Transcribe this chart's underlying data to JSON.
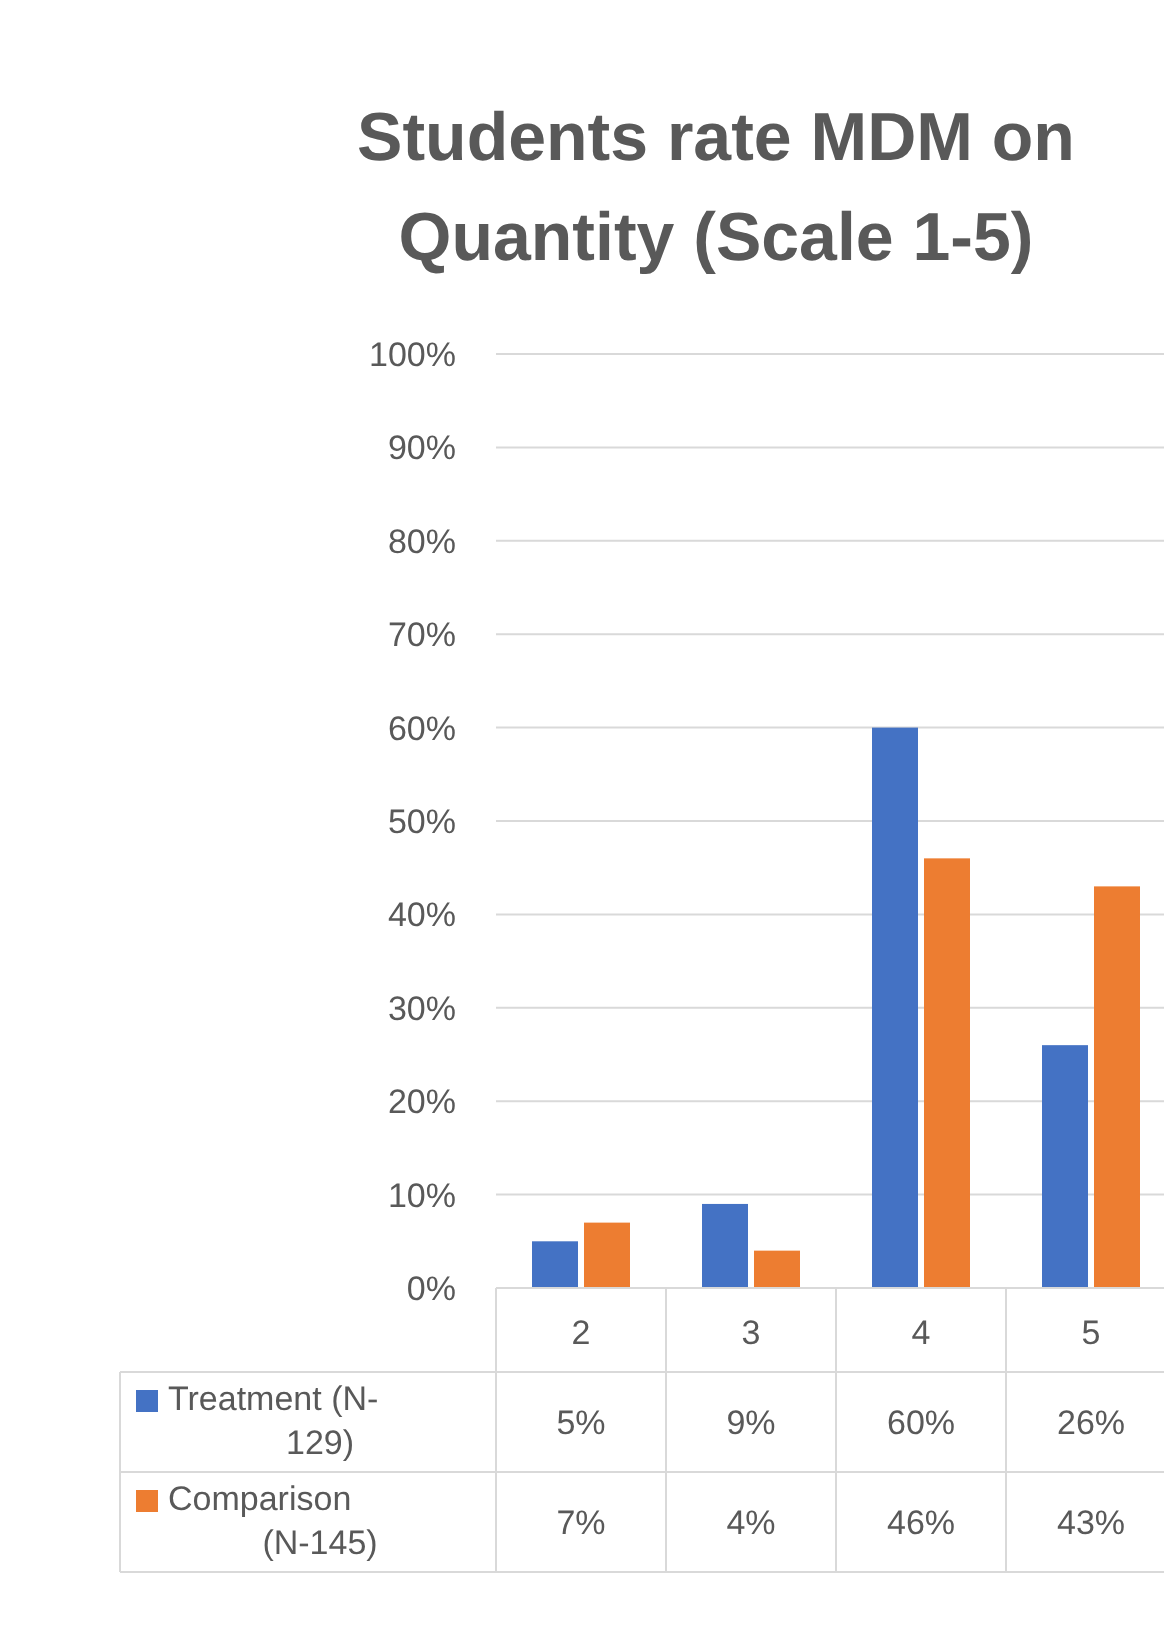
{
  "chart_data": {
    "type": "bar",
    "title": "Students rate MDM on Quantity (Scale 1-5)",
    "categories": [
      "2",
      "3",
      "4",
      "5"
    ],
    "series": [
      {
        "name": "Treatment (N-129)",
        "color": "#4472c4",
        "values": [
          5,
          9,
          60,
          26
        ],
        "value_labels": [
          "5%",
          "9%",
          "60%",
          "26%"
        ]
      },
      {
        "name": "Comparison (N-145)",
        "color": "#ed7d31",
        "values": [
          7,
          4,
          46,
          43
        ],
        "value_labels": [
          "7%",
          "4%",
          "46%",
          "43%"
        ]
      }
    ],
    "ylim": [
      0,
      100
    ],
    "yticks": [
      {
        "value": 0,
        "label": "0%"
      },
      {
        "value": 10,
        "label": "10%"
      },
      {
        "value": 20,
        "label": "20%"
      },
      {
        "value": 30,
        "label": "30%"
      },
      {
        "value": 40,
        "label": "40%"
      },
      {
        "value": 50,
        "label": "50%"
      },
      {
        "value": 60,
        "label": "60%"
      },
      {
        "value": 70,
        "label": "70%"
      },
      {
        "value": 80,
        "label": "80%"
      },
      {
        "value": 90,
        "label": "90%"
      },
      {
        "value": 100,
        "label": "100%"
      }
    ],
    "grid": "y",
    "legend": "bottom"
  }
}
